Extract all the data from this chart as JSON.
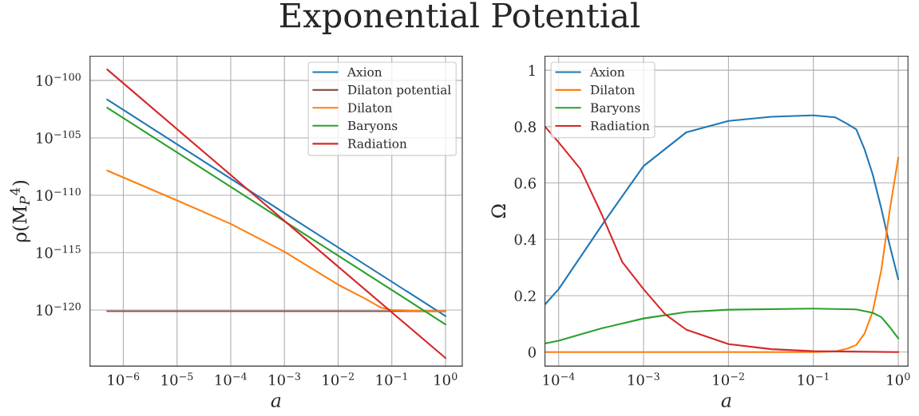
{
  "chart_data": [
    {
      "type": "line",
      "title": "Exponential Potential",
      "xlabel": "a",
      "ylabel": "ρ(M$_{P}$$^{4}$)",
      "log": "xy",
      "grid": true,
      "legend": "top right",
      "xlim": [
        2.4e-07,
        2.05
      ],
      "xticks": [
        {
          "value": 1e-06,
          "label": "10$^{−6}$"
        },
        {
          "value": 1e-05,
          "label": "10$^{−5}$"
        },
        {
          "value": 0.0001,
          "label": "10$^{−4}$"
        },
        {
          "value": 0.001,
          "label": "10$^{−3}$"
        },
        {
          "value": 0.01,
          "label": "10$^{−2}$"
        },
        {
          "value": 0.1,
          "label": "10$^{−1}$"
        },
        {
          "value": 1,
          "label": "10$^{0}$"
        }
      ],
      "ylim": [
        1.3e-125,
        1.3e-98
      ],
      "yticks": [
        {
          "value": 1e-100,
          "label": "10$^{−100}$"
        },
        {
          "value": 1e-105,
          "label": "10$^{−105}$"
        },
        {
          "value": 1e-110,
          "label": "10$^{−110}$"
        },
        {
          "value": 1e-115,
          "label": "10$^{−115}$"
        },
        {
          "value": 1e-120,
          "label": "10$^{−120}$"
        }
      ],
      "series": [
        {
          "name": "Axion",
          "color": "#1f77b4",
          "x": [
            5e-07,
            0.001,
            1
          ],
          "values": [
            2.2e-102,
            2.8e-112,
            2.95e-121
          ]
        },
        {
          "name": "Dilaton potential",
          "color": "#8c564b",
          "x": [
            5e-07,
            1
          ],
          "values": [
            7.9e-121,
            7.9e-121
          ]
        },
        {
          "name": "Dilaton",
          "color": "#ff7f0e",
          "x": [
            5e-07,
            1e-05,
            0.0001,
            0.001,
            0.01,
            0.0316,
            0.063,
            0.1,
            0.316,
            1
          ],
          "values": [
            1.4e-108,
            3.5e-111,
            3.2e-113,
            1.2e-115,
            1.6e-118,
            1e-119,
            1.6e-120,
            1e-120,
            8e-121,
            7.9e-121
          ]
        },
        {
          "name": "Baryons",
          "color": "#2ca02c",
          "x": [
            5e-07,
            0.001,
            1
          ],
          "values": [
            4.3e-103,
            5.4e-113,
            5.6e-122
          ]
        },
        {
          "name": "Radiation",
          "color": "#d62728",
          "x": [
            5e-07,
            0.001,
            1
          ],
          "values": [
            9.1e-100,
            5.8e-113,
            6.5e-125
          ]
        }
      ]
    },
    {
      "type": "line",
      "xlabel": "a",
      "ylabel": "Ω",
      "log": "x",
      "grid": true,
      "legend": "top left",
      "xlim": [
        6.9e-05,
        1.3
      ],
      "xticks": [
        {
          "value": 0.0001,
          "label": "10$^{−4}$"
        },
        {
          "value": 0.001,
          "label": "10$^{−3}$"
        },
        {
          "value": 0.01,
          "label": "10$^{−2}$"
        },
        {
          "value": 0.1,
          "label": "10$^{−1}$"
        },
        {
          "value": 1,
          "label": "10$^{0}$"
        }
      ],
      "ylim": [
        -0.05,
        1.05
      ],
      "yticks": [
        0,
        0.2,
        0.4,
        0.6,
        0.8,
        1
      ],
      "series": [
        {
          "name": "Axion",
          "color": "#1f77b4",
          "x": [
            6.9e-05,
            0.0001,
            0.00034,
            0.001,
            0.0032,
            0.01,
            0.032,
            0.1,
            0.18,
            0.25,
            0.32,
            0.4,
            0.5,
            0.63,
            0.79,
            1
          ],
          "values": [
            0.169,
            0.223,
            0.46,
            0.66,
            0.78,
            0.82,
            0.835,
            0.84,
            0.833,
            0.81,
            0.79,
            0.72,
            0.63,
            0.51,
            0.38,
            0.258
          ]
        },
        {
          "name": "Dilaton",
          "color": "#ff7f0e",
          "x": [
            6.9e-05,
            0.1,
            0.18,
            0.25,
            0.32,
            0.4,
            0.5,
            0.63,
            0.79,
            1
          ],
          "values": [
            0,
            0,
            0.002,
            0.012,
            0.025,
            0.065,
            0.144,
            0.29,
            0.5,
            0.69
          ]
        },
        {
          "name": "Baryons",
          "color": "#2ca02c",
          "x": [
            6.9e-05,
            0.0001,
            0.00032,
            0.001,
            0.0032,
            0.01,
            0.1,
            0.32,
            0.5,
            0.63,
            0.79,
            1
          ],
          "values": [
            0.03,
            0.04,
            0.084,
            0.119,
            0.142,
            0.15,
            0.154,
            0.151,
            0.139,
            0.124,
            0.089,
            0.048
          ]
        },
        {
          "name": "Radiation",
          "color": "#d62728",
          "x": [
            6.9e-05,
            0.0001,
            0.00018,
            0.00032,
            0.00056,
            0.001,
            0.0018,
            0.0032,
            0.01,
            0.032,
            0.1,
            1
          ],
          "values": [
            0.8,
            0.744,
            0.65,
            0.49,
            0.32,
            0.223,
            0.134,
            0.079,
            0.028,
            0.01,
            0.003,
            0
          ]
        }
      ]
    }
  ]
}
